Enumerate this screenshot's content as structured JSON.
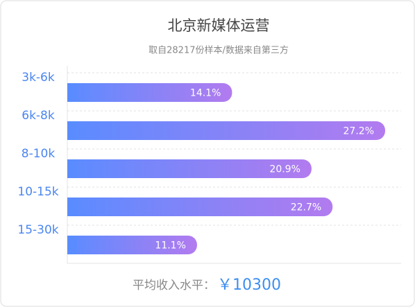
{
  "chart_data": {
    "type": "bar",
    "orientation": "horizontal",
    "title": "北京新媒体运营",
    "subtitle": "取自28217份样本/数据来自第三方",
    "categories": [
      "3k-6k",
      "6k-8k",
      "8-10k",
      "10-15k",
      "15-30k"
    ],
    "values": [
      14.1,
      27.2,
      20.9,
      22.7,
      11.1
    ],
    "value_labels": [
      "14.1%",
      "27.2%",
      "20.9%",
      "22.7%",
      "11.1%"
    ],
    "colors": [
      "#5a8cff",
      "#b27bef"
    ],
    "grid": true,
    "footer": {
      "label": "平均收入水平：",
      "value": "￥10300"
    }
  }
}
